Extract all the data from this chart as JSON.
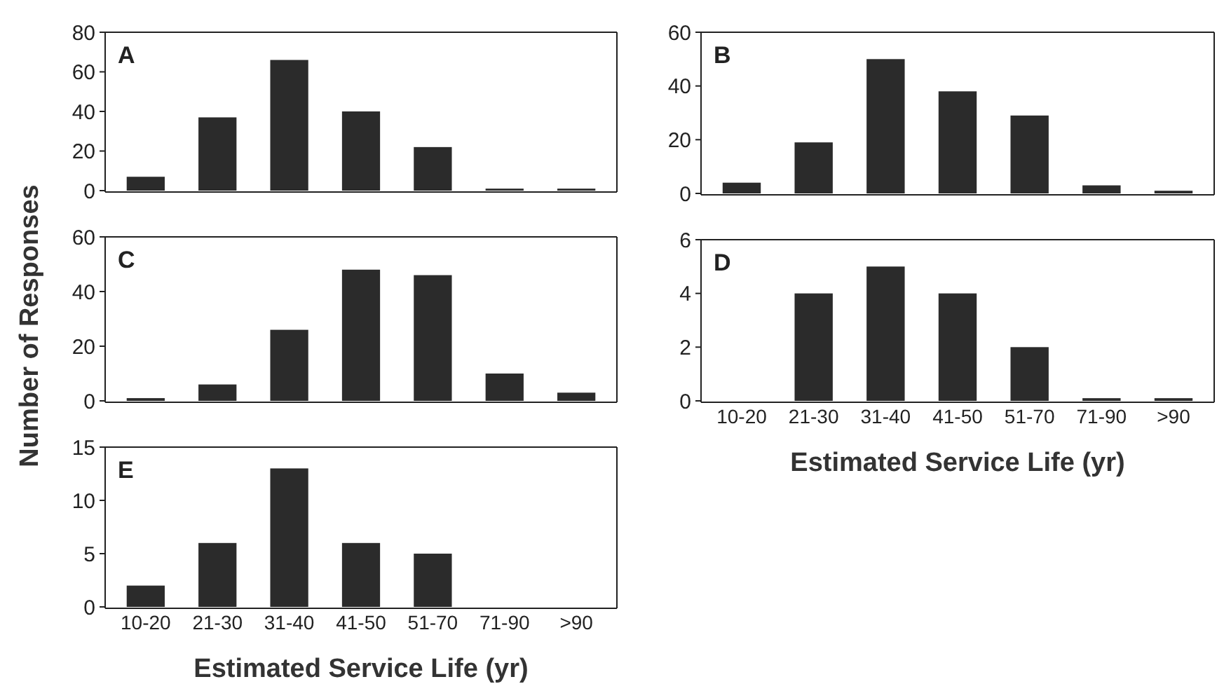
{
  "chart_data": [
    {
      "type": "bar",
      "title": "A",
      "categories": [
        null,
        null,
        null,
        null,
        null,
        null,
        null
      ],
      "values": [
        7,
        37,
        66,
        40,
        22,
        1,
        1
      ],
      "color": "#2b2b2b",
      "ylim": [
        0,
        80
      ],
      "yticks": [
        0,
        20,
        40,
        60,
        80
      ],
      "tick_labels": "y"
    },
    {
      "type": "bar",
      "title": "B",
      "categories": [
        null,
        null,
        null,
        null,
        null,
        null,
        null
      ],
      "values": [
        4,
        19,
        50,
        38,
        29,
        3,
        1
      ],
      "color": "#2b2b2b",
      "ylim": [
        0,
        60
      ],
      "yticks": [
        0,
        20,
        40,
        60
      ],
      "tick_labels": "y"
    },
    {
      "type": "bar",
      "title": "C",
      "ylabel": "Number of Responses",
      "categories": [
        null,
        null,
        null,
        null,
        null,
        null,
        null
      ],
      "values": [
        1,
        6,
        26,
        48,
        46,
        10,
        3
      ],
      "color": "#2b2b2b",
      "ylim": [
        0,
        60
      ],
      "yticks": [
        0,
        20,
        40,
        60
      ],
      "tick_labels": "y"
    },
    {
      "type": "bar",
      "title": "D",
      "xlabel": "Estimated Service Life (yr)",
      "categories": [
        "10-20",
        "21-30",
        "31-40",
        "41-50",
        "51-70",
        "71-90",
        ">90"
      ],
      "values": [
        0,
        4,
        5,
        4,
        2,
        0.1,
        0.1
      ],
      "color": "#2b2b2b",
      "ylim": [
        0,
        6
      ],
      "yticks": [
        0,
        2,
        4,
        6
      ]
    },
    {
      "type": "bar",
      "title": "E",
      "xlabel": "Estimated Service Life (yr)",
      "categories": [
        "10-20",
        "21-30",
        "31-40",
        "41-50",
        "51-70",
        "71-90",
        ">90"
      ],
      "values": [
        2,
        6,
        13,
        6,
        5,
        0,
        0
      ],
      "color": "#2b2b2b",
      "ylim": [
        0,
        15
      ],
      "yticks": [
        0,
        5,
        10,
        15
      ]
    }
  ]
}
